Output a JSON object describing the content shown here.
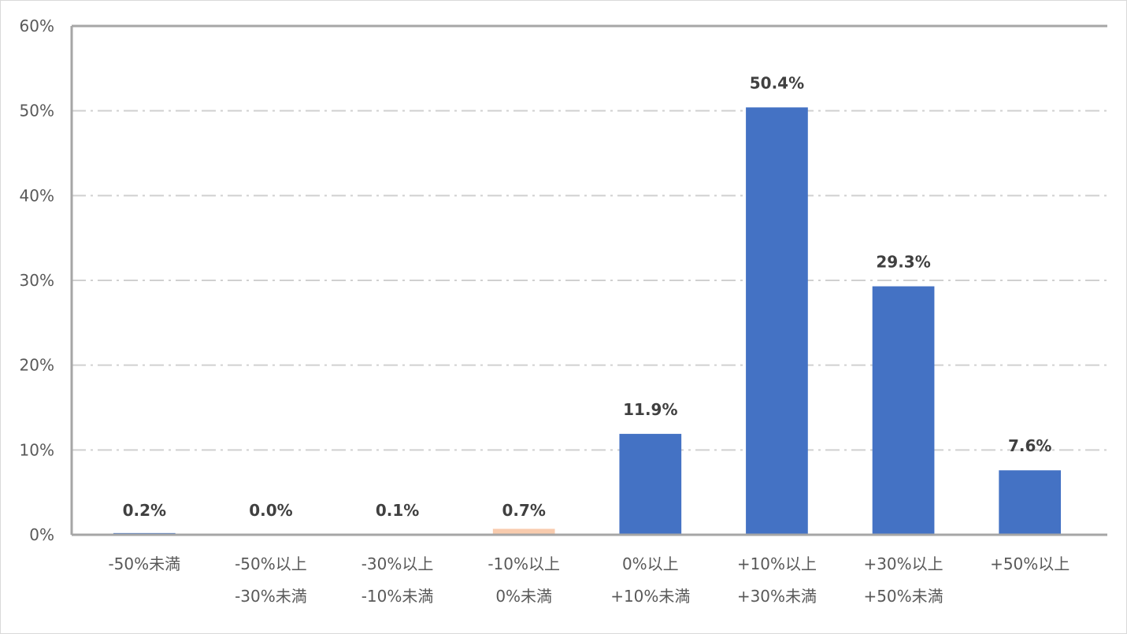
{
  "chart_data": {
    "type": "bar",
    "title": "",
    "xlabel": "",
    "ylabel": "",
    "categories": [
      [
        "-50%未満"
      ],
      [
        "-50%以上",
        "-30%未満"
      ],
      [
        "-30%以上",
        "-10%未満"
      ],
      [
        "-10%以上",
        "0%未満"
      ],
      [
        "0%以上",
        "+10%未満"
      ],
      [
        "+10%以上",
        "+30%未満"
      ],
      [
        "+30%以上",
        "+50%未満"
      ],
      [
        "+50%以上"
      ]
    ],
    "values": [
      0.2,
      0.0,
      0.1,
      0.7,
      11.9,
      50.4,
      29.3,
      7.6
    ],
    "data_labels": [
      "0.2%",
      "0.0%",
      "0.1%",
      "0.7%",
      "11.9%",
      "50.4%",
      "29.3%",
      "7.6%"
    ],
    "bar_colors": [
      "#4472c4",
      "#4472c4",
      "#4472c4",
      "#f8cbad",
      "#4472c4",
      "#4472c4",
      "#4472c4",
      "#4472c4"
    ],
    "ylim": [
      0,
      60
    ],
    "yticks": [
      0,
      10,
      20,
      30,
      40,
      50,
      60
    ],
    "ytick_labels": [
      "0%",
      "10%",
      "20%",
      "30%",
      "40%",
      "50%",
      "60%"
    ],
    "grid": true,
    "legend": "none"
  }
}
